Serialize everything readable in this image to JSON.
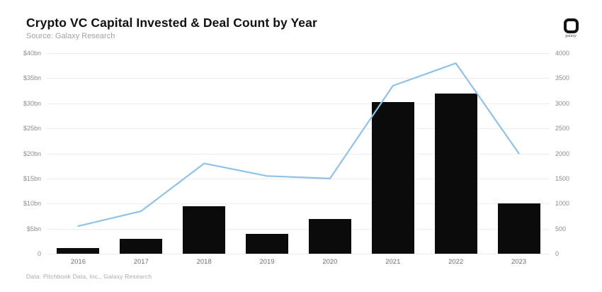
{
  "header": {
    "title": "Crypto VC Capital Invested & Deal Count by Year",
    "subtitle": "Source: Galaxy Research",
    "logo_text": "galaxy"
  },
  "footer": {
    "text": "Data: Pitchbook Data, Inc., Galaxy Research"
  },
  "colors": {
    "bar": "#0b0b0b",
    "line": "#8fc2e9",
    "grid": "#ededed",
    "axis_text": "#8c8c8c",
    "title_text": "#121212",
    "subtitle_text": "#a3a3a3",
    "background": "#ffffff"
  },
  "chart_data": {
    "type": "bar",
    "combo": "bar+line",
    "title": "Crypto VC Capital Invested & Deal Count by Year",
    "categories": [
      "2016",
      "2017",
      "2018",
      "2019",
      "2020",
      "2021",
      "2022",
      "2023"
    ],
    "series": [
      {
        "name": "Capital Invested",
        "type": "bar",
        "axis": "left",
        "unit": "$bn",
        "values": [
          1.2,
          2.9,
          9.5,
          3.9,
          6.9,
          30.2,
          32,
          10
        ]
      },
      {
        "name": "Deal Count",
        "type": "line",
        "axis": "right",
        "unit": "deals",
        "values": [
          550,
          850,
          1800,
          1550,
          1500,
          3350,
          3800,
          2000
        ]
      }
    ],
    "left_axis": {
      "label": "",
      "min": 0,
      "max": 40,
      "ticks": [
        "$40bn",
        "$35bn",
        "$30bn",
        "$25bn",
        "$20bn",
        "$15bn",
        "$10bn",
        "$5bn",
        "0"
      ]
    },
    "right_axis": {
      "label": "",
      "min": 0,
      "max": 4000,
      "ticks": [
        "4000",
        "3500",
        "3000",
        "2500",
        "2000",
        "1500",
        "1000",
        "500",
        "0"
      ]
    },
    "grid": true,
    "legend": "none"
  }
}
